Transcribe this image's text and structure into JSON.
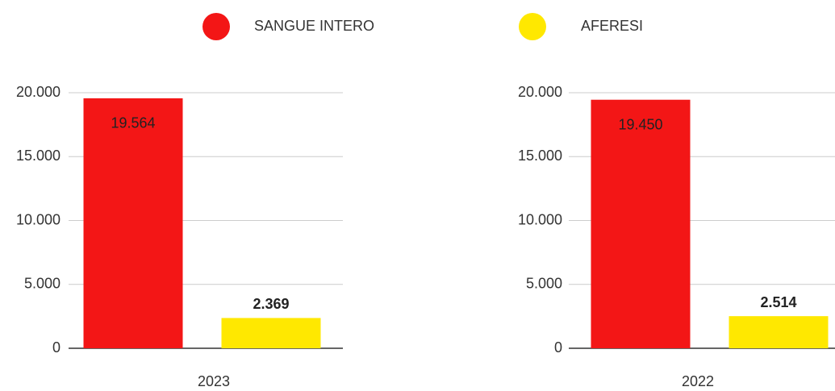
{
  "legend": [
    {
      "name": "SANGUE INTERO",
      "color": "#f31616"
    },
    {
      "name": "AFERESI",
      "color": "#ffe800"
    }
  ],
  "chart_data": [
    {
      "type": "bar",
      "categories": [
        "2023"
      ],
      "series": [
        {
          "values": [
            19564
          ],
          "value_labels": [
            "19.564"
          ]
        },
        {
          "values": [
            2369
          ],
          "value_labels": [
            "2.369"
          ]
        }
      ],
      "ylim": [
        0,
        20000
      ],
      "yticks": [
        0,
        {
          "value": 5000,
          "label": "5.000"
        },
        {
          "value": 10000,
          "label": "10.000"
        },
        {
          "value": 15000,
          "label": "15.000"
        },
        {
          "value": 20000,
          "label": "20.000"
        }
      ],
      "grid": true
    },
    {
      "type": "bar",
      "categories": [
        "2022"
      ],
      "series": [
        {
          "values": [
            19450
          ],
          "value_labels": [
            "19.450"
          ]
        },
        {
          "values": [
            2514
          ],
          "value_labels": [
            "2.514"
          ]
        }
      ],
      "ylim": [
        0,
        20000
      ],
      "yticks": [
        0,
        {
          "value": 5000,
          "label": "5.000"
        },
        {
          "value": 10000,
          "label": "10.000"
        },
        {
          "value": 15000,
          "label": "15.000"
        },
        {
          "value": 20000,
          "label": "20.000"
        }
      ],
      "grid": true
    }
  ]
}
